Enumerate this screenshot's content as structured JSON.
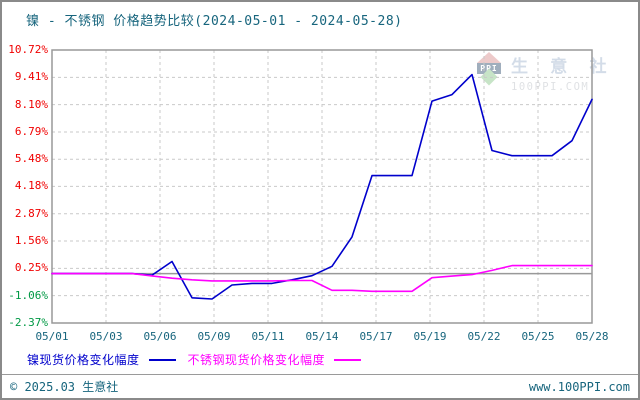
{
  "chart_data": {
    "type": "line",
    "title": "镍 - 不锈钢 价格趋势比较(2024-05-01 - 2024-05-28)",
    "x": [
      "05/01",
      "05/02",
      "05/03",
      "05/04",
      "05/05",
      "05/06",
      "05/07",
      "05/08",
      "05/09",
      "05/10",
      "05/11",
      "05/12",
      "05/13",
      "05/14",
      "05/15",
      "05/16",
      "05/17",
      "05/18",
      "05/19",
      "05/20",
      "05/21",
      "05/22",
      "05/23",
      "05/24",
      "05/25",
      "05/26",
      "05/27",
      "05/28"
    ],
    "series": [
      {
        "name": "镍现货价格变化幅度",
        "color": "#0000cc",
        "values": [
          0,
          0,
          0,
          0,
          0,
          -0.08,
          0.58,
          -1.16,
          -1.22,
          -0.55,
          -0.47,
          -0.47,
          -0.3,
          -0.1,
          0.35,
          1.76,
          4.7,
          4.7,
          4.7,
          8.27,
          8.58,
          9.54,
          5.9,
          5.65,
          5.65,
          5.65,
          6.37,
          8.35
        ]
      },
      {
        "name": "不锈钢现货价格变化幅度",
        "color": "#ff00ff",
        "values": [
          0,
          0,
          0,
          0,
          0,
          -0.11,
          -0.22,
          -0.3,
          -0.35,
          -0.35,
          -0.35,
          -0.35,
          -0.33,
          -0.33,
          -0.8,
          -0.8,
          -0.85,
          -0.85,
          -0.85,
          -0.2,
          -0.12,
          -0.05,
          0.15,
          0.38,
          0.38,
          0.38,
          0.38,
          0.38
        ]
      }
    ],
    "ylim": [
      -2.37,
      10.72
    ],
    "yticks": [
      10.72,
      9.41,
      8.1,
      6.79,
      5.48,
      4.18,
      2.87,
      1.56,
      0.25,
      -1.06,
      -2.37
    ],
    "ytick_labels": [
      "10.72%",
      "9.41%",
      "8.10%",
      "6.79%",
      "5.48%",
      "4.18%",
      "2.87%",
      "1.56%",
      "0.25%",
      "-1.06%",
      "-2.37%"
    ],
    "xtick_labels": [
      "05/01",
      "05/03",
      "05/06",
      "05/09",
      "05/11",
      "05/14",
      "05/17",
      "05/19",
      "05/22",
      "05/25",
      "05/28"
    ],
    "ytick_color_positive": "#f00000",
    "ytick_color_negative": "#009944",
    "xtick_color": "#17657d",
    "grid": {
      "show": true,
      "style": "dashed",
      "color": "#c9c9c9"
    },
    "zero_line_color": "#999999",
    "border_color": "#999999",
    "legend_position": "bottom",
    "ylabel": "",
    "xlabel": ""
  },
  "legend": {
    "items": [
      {
        "label": "镍现货价格变化幅度",
        "color": "#0000cc"
      },
      {
        "label": "不锈钢现货价格变化幅度",
        "color": "#ff00ff"
      }
    ]
  },
  "watermark": {
    "logo_text": "PPI",
    "site_name": "生 意 社",
    "site_url": "100PPI.COM"
  },
  "footer": {
    "copyright": "© 2025.03 生意社",
    "website": "www.100PPI.com"
  }
}
